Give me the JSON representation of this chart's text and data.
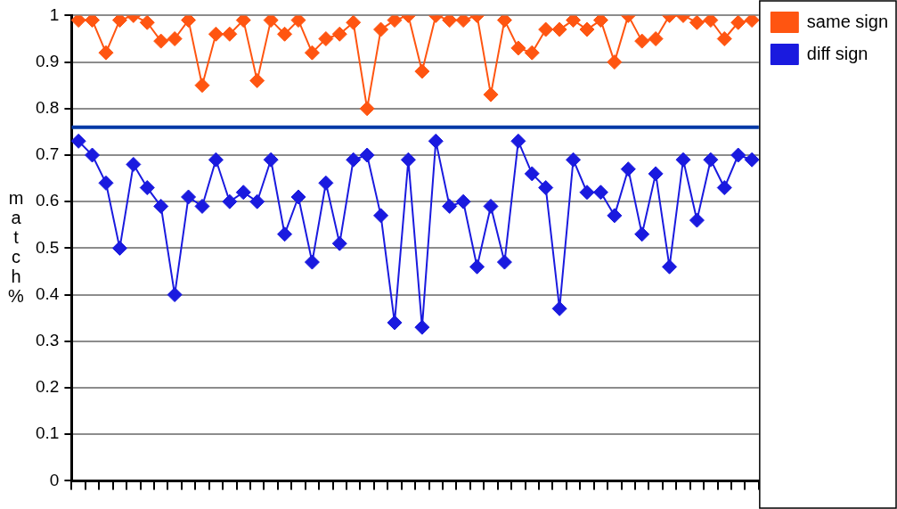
{
  "chart_data": {
    "type": "line",
    "ylabel": "match%",
    "categories": [
      null,
      null,
      null,
      null,
      null,
      null,
      null,
      null,
      null,
      null,
      null,
      null,
      null,
      null,
      null,
      null,
      null,
      null,
      null,
      null,
      null,
      null,
      null,
      null,
      null,
      null,
      null,
      null,
      null,
      null,
      null,
      null,
      null,
      null,
      null,
      null,
      null,
      null,
      null,
      null,
      null,
      null,
      null,
      null,
      null,
      null,
      null,
      null,
      null,
      null
    ],
    "series": [
      {
        "name": "same sign",
        "color": "#ff5511",
        "values": [
          0.99,
          0.99,
          0.92,
          0.99,
          1.0,
          0.985,
          0.945,
          0.95,
          0.99,
          0.85,
          0.96,
          0.96,
          0.99,
          0.86,
          0.99,
          0.96,
          0.99,
          0.92,
          0.95,
          0.96,
          0.985,
          0.8,
          0.97,
          0.99,
          1.0,
          0.88,
          1.0,
          0.99,
          0.99,
          1.0,
          0.83,
          0.99,
          0.93,
          0.92,
          0.97,
          0.97,
          0.99,
          0.97,
          0.99,
          0.9,
          1.0,
          0.945,
          0.95,
          1.0,
          1.0,
          0.985,
          0.99,
          0.95,
          0.985,
          0.99
        ]
      },
      {
        "name": "diff sign",
        "color": "#1a1adf",
        "values": [
          0.73,
          0.7,
          0.64,
          0.5,
          0.68,
          0.63,
          0.59,
          0.4,
          0.61,
          0.59,
          0.69,
          0.6,
          0.62,
          0.6,
          0.69,
          0.53,
          0.61,
          0.47,
          0.64,
          0.51,
          0.69,
          0.7,
          0.57,
          0.34,
          0.69,
          0.33,
          0.73,
          0.59,
          0.6,
          0.46,
          0.59,
          0.47,
          0.73,
          0.66,
          0.63,
          0.37,
          0.69,
          0.62,
          0.62,
          0.57,
          0.67,
          0.53,
          0.66,
          0.46,
          0.69,
          0.56,
          0.69,
          0.63,
          0.7,
          0.69
        ]
      }
    ],
    "ylim": [
      0,
      1
    ],
    "yticks": [
      0,
      0.1,
      0.2,
      0.3,
      0.4,
      0.5,
      0.6,
      0.7,
      0.8,
      0.9,
      1
    ],
    "ref_lines": [
      {
        "axis": "y",
        "value": 0.76,
        "color": "#0039a6"
      }
    ],
    "grid": "y",
    "legend": "top right",
    "marker": "diamond",
    "line_style": "solid"
  }
}
